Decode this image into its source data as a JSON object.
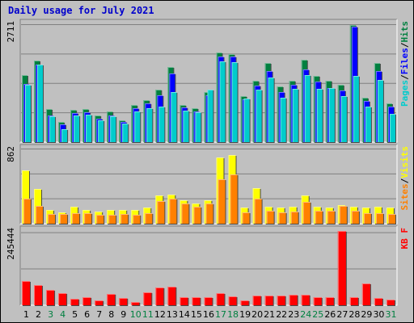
{
  "chart_data": {
    "type": "bar",
    "title": "Daily usage for July 2021",
    "days": [
      "1",
      "2",
      "3",
      "4",
      "5",
      "6",
      "7",
      "8",
      "9",
      "10",
      "11",
      "12",
      "13",
      "14",
      "15",
      "16",
      "17",
      "18",
      "19",
      "20",
      "21",
      "22",
      "23",
      "24",
      "25",
      "26",
      "27",
      "28",
      "29",
      "30",
      "31"
    ],
    "weekend_days": [
      "3",
      "4",
      "10",
      "11",
      "17",
      "18",
      "24",
      "25",
      "31"
    ],
    "panels": [
      {
        "name": "hits-files-pages",
        "ymax": 2711,
        "ymax_label": "2711",
        "legend": [
          {
            "label": "Pages",
            "color": "#00cccc"
          },
          {
            "label": "/",
            "color": "#000000"
          },
          {
            "label": "Files",
            "color": "#0000ff"
          },
          {
            "label": "/",
            "color": "#000000"
          },
          {
            "label": "Hits",
            "color": "#008040"
          }
        ],
        "series": [
          {
            "name": "Hits",
            "color": "#008040",
            "values": [
              1540,
              1870,
              760,
              460,
              740,
              760,
              620,
              700,
              500,
              860,
              960,
              1210,
              1720,
              850,
              780,
              1160,
              2060,
              2020,
              1060,
              1420,
              1820,
              1280,
              1410,
              1890,
              1520,
              1420,
              1310,
              2700,
              1030,
              1820,
              900
            ]
          },
          {
            "name": "Files",
            "color": "#0000ff",
            "values": [
              1340,
              1790,
              620,
              400,
              660,
              680,
              540,
              610,
              460,
              780,
              900,
              1080,
              1570,
              790,
              700,
              1070,
              1960,
              1960,
              980,
              1300,
              1640,
              1150,
              1320,
              1680,
              1400,
              1250,
              1190,
              2650,
              940,
              1640,
              820
            ]
          },
          {
            "name": "Pages",
            "color": "#00cccc",
            "values": [
              1320,
              1790,
              600,
              300,
              620,
              640,
              500,
              600,
              430,
              710,
              780,
              810,
              1150,
              720,
              680,
              1200,
              1860,
              1840,
              1000,
              1210,
              1480,
              1020,
              1220,
              1540,
              1220,
              1240,
              1050,
              1520,
              820,
              1430,
              650
            ]
          }
        ]
      },
      {
        "name": "visits-sites",
        "ymax": 862,
        "ymax_label": "862",
        "legend": [
          {
            "label": "Sites",
            "color": "#ff8000"
          },
          {
            "label": "/",
            "color": "#000000"
          },
          {
            "label": "Visits",
            "color": "#ffff00"
          }
        ],
        "series": [
          {
            "name": "Visits",
            "color": "#ffff00",
            "values": [
              620,
              400,
              160,
              130,
              200,
              160,
              140,
              160,
              160,
              160,
              190,
              330,
              340,
              270,
              230,
              270,
              770,
              800,
              190,
              410,
              200,
              190,
              200,
              330,
              200,
              190,
              220,
              200,
              190,
              200,
              190
            ]
          },
          {
            "name": "Sites",
            "color": "#ff8000",
            "values": [
              290,
              210,
              110,
              110,
              120,
              120,
              100,
              100,
              110,
              100,
              120,
              260,
              290,
              230,
              200,
              230,
              520,
              570,
              130,
              290,
              150,
              130,
              140,
              250,
              150,
              150,
              210,
              150,
              120,
              120,
              110
            ]
          }
        ]
      },
      {
        "name": "kbytes",
        "ymax": 245444,
        "ymax_label": "245444",
        "legend": [
          {
            "label": "KB F",
            "color": "#ff0000"
          }
        ],
        "series": [
          {
            "name": "KB F",
            "color": "#ff0000",
            "values": [
              80000,
              68000,
              50000,
              40000,
              22000,
              28000,
              16000,
              38000,
              25000,
              10000,
              44000,
              60000,
              62000,
              27000,
              28000,
              28000,
              40000,
              30000,
              15000,
              32000,
              32000,
              32000,
              35000,
              34000,
              27000,
              27000,
              245444,
              27000,
              72000,
              25000,
              19000
            ]
          }
        ]
      }
    ]
  }
}
